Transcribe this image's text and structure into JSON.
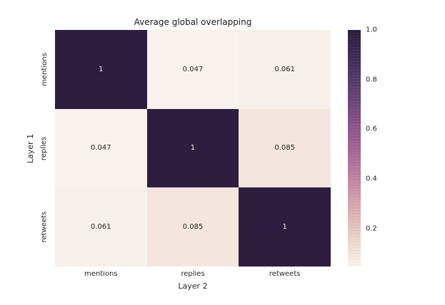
{
  "chart_data": {
    "type": "heatmap",
    "title": "Average global overlapping",
    "xlabel": "Layer 2",
    "ylabel": "Layer 1",
    "categories_x": [
      "mentions",
      "replies",
      "retweets"
    ],
    "categories_y": [
      "mentions",
      "replies",
      "retweets"
    ],
    "matrix": [
      [
        1,
        0.047,
        0.061
      ],
      [
        0.047,
        1,
        0.085
      ],
      [
        0.061,
        0.085,
        1
      ]
    ],
    "cell_labels": [
      [
        "1",
        "0.047",
        "0.061"
      ],
      [
        "0.047",
        "1",
        "0.085"
      ],
      [
        "0.061",
        "0.085",
        "1"
      ]
    ],
    "value_colors": {
      "1": "#2d1e40",
      "0.047": "#f9f1ed",
      "0.061": "#f7efe9",
      "0.085": "#f4e6de"
    },
    "annotation_text_colors": {
      "on_dark": "#f0ebf2",
      "on_light": "#262626"
    },
    "colorbar": {
      "vmin": 0.047,
      "vmax": 1.0,
      "ticks": [
        {
          "value": 1.0,
          "label": "1.0"
        },
        {
          "value": 0.8,
          "label": "0.8"
        },
        {
          "value": 0.6,
          "label": "0.6"
        },
        {
          "value": 0.4,
          "label": "0.4"
        },
        {
          "value": 0.2,
          "label": "0.2"
        }
      ],
      "gradient_stops": [
        {
          "pos": 0.0,
          "color": "#2d1e40"
        },
        {
          "pos": 0.1,
          "color": "#3b2954"
        },
        {
          "pos": 0.2,
          "color": "#513a67"
        },
        {
          "pos": 0.3,
          "color": "#6b4579"
        },
        {
          "pos": 0.4,
          "color": "#8a5389"
        },
        {
          "pos": 0.5,
          "color": "#a36394"
        },
        {
          "pos": 0.6,
          "color": "#b97b9e"
        },
        {
          "pos": 0.7,
          "color": "#cf9bab"
        },
        {
          "pos": 0.8,
          "color": "#e0bab6"
        },
        {
          "pos": 0.9,
          "color": "#eedacd"
        },
        {
          "pos": 1.0,
          "color": "#f9f1ec"
        }
      ]
    },
    "layout": {
      "grid_on": false,
      "legend_position": "colorbar-right",
      "background": "#ffffff"
    }
  }
}
